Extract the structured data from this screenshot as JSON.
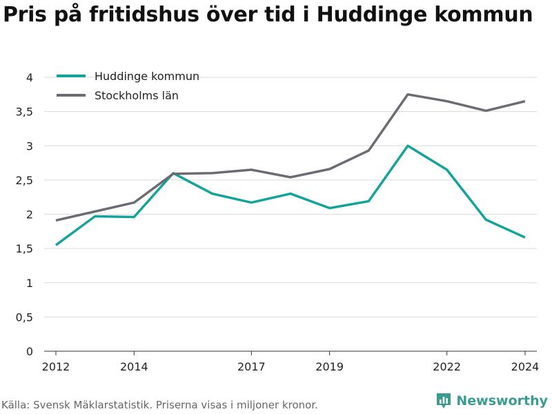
{
  "title": "Pris på fritidshus över tid i Huddinge kommun",
  "footer": {
    "source": "Källa: Svensk Mäklarstatistik. Priserna visas i miljoner kronor.",
    "brand": "Newsworthy"
  },
  "colors": {
    "brand": "#3a9c8f"
  },
  "chart_data": {
    "type": "line",
    "title": "",
    "xlabel": "",
    "ylabel": "",
    "x": [
      2012,
      2013,
      2014,
      2015,
      2016,
      2017,
      2018,
      2019,
      2020,
      2021,
      2022,
      2023,
      2024
    ],
    "xlim": [
      2011.7,
      2024.3
    ],
    "ylim": [
      0,
      4
    ],
    "yticks": [
      0,
      0.5,
      1,
      1.5,
      2,
      2.5,
      3,
      3.5,
      4
    ],
    "ytick_labels": [
      "0",
      "0,5",
      "1",
      "1,5",
      "2",
      "2,5",
      "3",
      "3,5",
      "4"
    ],
    "xticks": [
      2012,
      2014,
      2017,
      2019,
      2022,
      2024
    ],
    "xtick_labels": [
      "2012",
      "2014",
      "2017",
      "2019",
      "2022",
      "2024"
    ],
    "grid": true,
    "legend_position": "top-left",
    "series": [
      {
        "name": "Huddinge kommun",
        "color": "#12a39a",
        "values": [
          1.55,
          1.97,
          1.96,
          2.6,
          2.3,
          2.17,
          2.3,
          2.09,
          2.19,
          3.0,
          2.65,
          1.92,
          1.66
        ]
      },
      {
        "name": "Stockholms län",
        "color": "#6b6b73",
        "values": [
          1.91,
          2.04,
          2.17,
          2.59,
          2.6,
          2.65,
          2.54,
          2.66,
          2.93,
          3.75,
          3.65,
          3.51,
          3.65
        ]
      }
    ]
  }
}
